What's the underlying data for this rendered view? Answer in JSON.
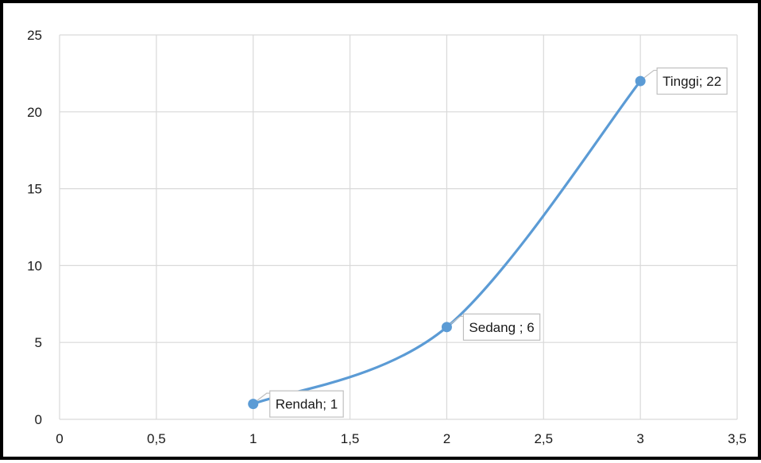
{
  "chart_data": {
    "type": "scatter",
    "title": "",
    "xlabel": "",
    "ylabel": "",
    "xlim": [
      0,
      3.5
    ],
    "ylim": [
      0,
      25
    ],
    "x_ticks": [
      "0",
      "0,5",
      "1",
      "1,5",
      "2",
      "2,5",
      "3",
      "3,5"
    ],
    "y_ticks": [
      "0",
      "5",
      "10",
      "15",
      "20",
      "25"
    ],
    "grid": true,
    "smooth_line": true,
    "legend": "none",
    "series": [
      {
        "color": "#5B9BD5",
        "points": [
          {
            "x": 1,
            "y": 1,
            "label": "Rendah; 1"
          },
          {
            "x": 2,
            "y": 6,
            "label": "Sedang ; 6"
          },
          {
            "x": 3,
            "y": 22,
            "label": "Tinggi; 22"
          }
        ]
      }
    ]
  }
}
